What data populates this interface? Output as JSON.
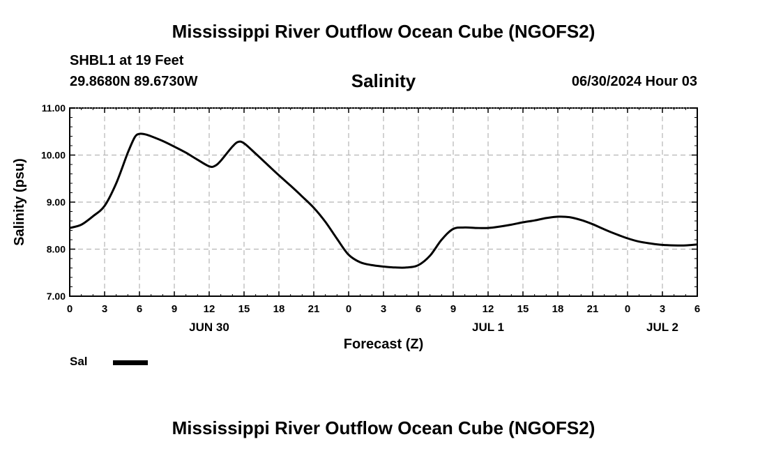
{
  "header": {
    "title": "Mississippi River Outflow Ocean Cube (NGOFS2)",
    "station": "SHBL1 at 19 Feet",
    "coordinates": "29.8680N  89.6730W",
    "datetime": "06/30/2024 Hour 03"
  },
  "footer": {
    "title": "Mississippi River Outflow Ocean Cube (NGOFS2)"
  },
  "chart_data": {
    "type": "line",
    "title": "Salinity",
    "xlabel": "Forecast (Z)",
    "ylabel": "Salinity (psu)",
    "xlim": [
      0,
      54
    ],
    "ylim": [
      7.0,
      11.0
    ],
    "grid": true,
    "x_ticks": [
      {
        "x": 0,
        "label": "0"
      },
      {
        "x": 3,
        "label": "3"
      },
      {
        "x": 6,
        "label": "6"
      },
      {
        "x": 9,
        "label": "9"
      },
      {
        "x": 12,
        "label": "12"
      },
      {
        "x": 15,
        "label": "15"
      },
      {
        "x": 18,
        "label": "18"
      },
      {
        "x": 21,
        "label": "21"
      },
      {
        "x": 24,
        "label": "0"
      },
      {
        "x": 27,
        "label": "3"
      },
      {
        "x": 30,
        "label": "6"
      },
      {
        "x": 33,
        "label": "9"
      },
      {
        "x": 36,
        "label": "12"
      },
      {
        "x": 39,
        "label": "15"
      },
      {
        "x": 42,
        "label": "18"
      },
      {
        "x": 45,
        "label": "21"
      },
      {
        "x": 48,
        "label": "0"
      },
      {
        "x": 51,
        "label": "3"
      },
      {
        "x": 54,
        "label": "6"
      }
    ],
    "y_ticks": [
      {
        "y": 7.0,
        "label": "7.00"
      },
      {
        "y": 8.0,
        "label": "8.00"
      },
      {
        "y": 9.0,
        "label": "9.00"
      },
      {
        "y": 10.0,
        "label": "10.00"
      },
      {
        "y": 11.0,
        "label": "11.00"
      }
    ],
    "day_labels": [
      {
        "x": 12,
        "label": "JUN 30"
      },
      {
        "x": 36,
        "label": "JUL 1"
      },
      {
        "x": 51,
        "label": "JUL 2"
      }
    ],
    "legend": {
      "position": "bottom-left",
      "entries": [
        "Sal"
      ]
    },
    "series": [
      {
        "name": "Sal",
        "color": "#000000",
        "x": [
          0,
          1,
          2,
          3,
          4,
          5,
          5.6,
          6,
          6.5,
          7,
          8,
          9,
          10,
          11,
          12,
          12.5,
          13,
          14,
          14.5,
          15,
          16,
          17,
          18,
          19,
          20,
          21,
          22,
          23,
          24,
          25,
          26,
          27,
          28,
          29,
          30,
          31,
          32,
          33,
          34,
          35,
          36,
          37,
          38,
          39,
          40,
          41,
          42,
          43,
          44,
          45,
          46,
          47,
          48,
          49,
          50,
          51,
          52,
          53,
          54
        ],
        "y": [
          8.45,
          8.52,
          8.7,
          8.92,
          9.4,
          10.05,
          10.38,
          10.45,
          10.44,
          10.4,
          10.3,
          10.18,
          10.05,
          9.9,
          9.76,
          9.77,
          9.88,
          10.18,
          10.28,
          10.25,
          10.03,
          9.8,
          9.57,
          9.35,
          9.12,
          8.88,
          8.58,
          8.22,
          7.88,
          7.72,
          7.66,
          7.63,
          7.61,
          7.61,
          7.66,
          7.86,
          8.2,
          8.43,
          8.46,
          8.45,
          8.45,
          8.48,
          8.52,
          8.57,
          8.61,
          8.66,
          8.69,
          8.68,
          8.62,
          8.53,
          8.42,
          8.32,
          8.23,
          8.16,
          8.12,
          8.09,
          8.08,
          8.08,
          8.1
        ]
      }
    ]
  }
}
